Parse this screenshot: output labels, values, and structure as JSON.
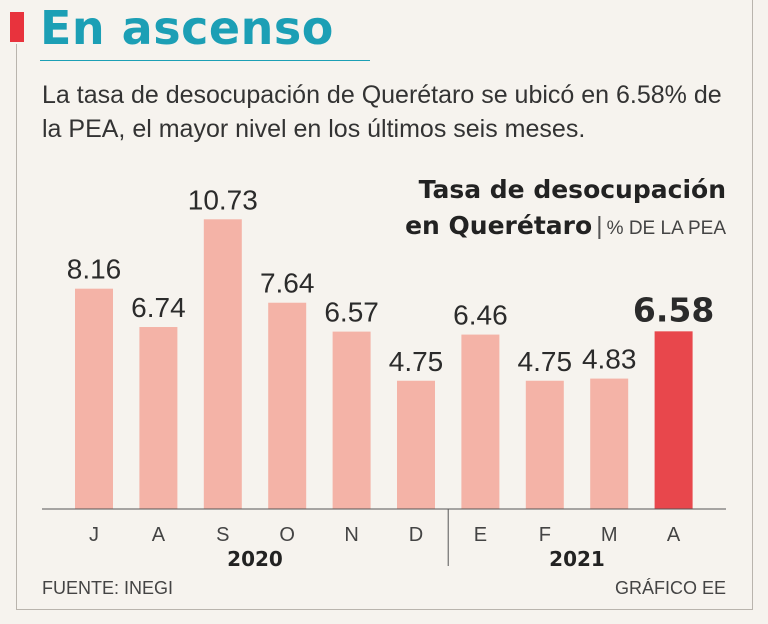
{
  "header": {
    "title": "En ascenso",
    "subtitle": "La tasa de desocupación de Querétaro se ubicó en 6.58% de la PEA, el mayor nivel en los últimos seis meses."
  },
  "chart_title": {
    "line1": "Tasa de desocupación",
    "line2": "en Querétaro",
    "separator": "|",
    "unit": "% DE LA PEA"
  },
  "chart_data": {
    "type": "bar",
    "title": "Tasa de desocupación en Querétaro",
    "ylabel": "% DE LA PEA",
    "xlabel": "",
    "categories": [
      "J",
      "A",
      "S",
      "O",
      "N",
      "D",
      "E",
      "F",
      "M",
      "A"
    ],
    "values": [
      8.16,
      6.74,
      10.73,
      7.64,
      6.57,
      4.75,
      6.46,
      4.75,
      4.83,
      6.58
    ],
    "value_labels": [
      "8.16",
      "6.74",
      "10.73",
      "7.64",
      "6.57",
      "4.75",
      "6.46",
      "4.75",
      "4.83",
      "6.58"
    ],
    "years": [
      {
        "label": "2020",
        "from_index": 0,
        "to_index": 5
      },
      {
        "label": "2021",
        "from_index": 6,
        "to_index": 9
      }
    ],
    "highlight_index": 9,
    "ylim": [
      0,
      11
    ],
    "grid": false,
    "colors": {
      "bar": "#f4b3a7",
      "highlight": "#e8474c",
      "axis": "#555555"
    }
  },
  "footer": {
    "source": "FUENTE: INEGI",
    "credit": "GRÁFICO EE"
  },
  "colors": {
    "accent": "#e8333d",
    "headline": "#1c9fb5",
    "background": "#f6f3ee"
  }
}
